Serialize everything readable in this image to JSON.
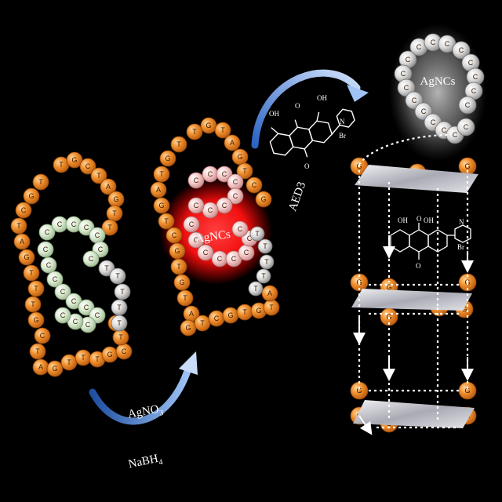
{
  "labels": {
    "agnc_center": "AgNCs",
    "agnc_top": "AgNCs",
    "reagent_top": "AgNO",
    "reagent_top_sub": "3",
    "reagent_bottom": "NaBH",
    "reagent_bottom_sub": "4",
    "compound": "AED3",
    "mol_oh1": "OH",
    "mol_oh2": "OH",
    "mol_o1": "O",
    "mol_o2": "O",
    "mol_br": "Br",
    "mol_n": "N"
  },
  "bases": {
    "T": "T",
    "G": "G",
    "C": "C",
    "A": "A"
  },
  "colors": {
    "background": "#000000",
    "orange_bead": "#e8862a",
    "green_bead": "#cfe3bf",
    "gray_bead": "#d9d9d9",
    "red_glow": "#ff1a1a",
    "arrow": "#3a7bd5",
    "plate": "#c8c8d0"
  }
}
